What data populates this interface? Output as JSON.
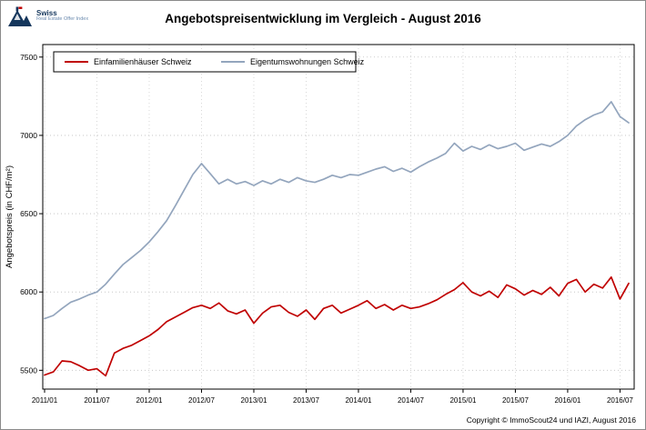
{
  "logo": {
    "brand": "Swiss",
    "tagline": "Real Estate Offer Index"
  },
  "title": "Angebotspreisentwicklung im Vergleich - August 2016",
  "footer": {
    "copyright": "Copyright © ImmoScout24 und IAZI, August 2016"
  },
  "chart_data": {
    "type": "line",
    "title": "Angebotspreisentwicklung im Vergleich - August 2016",
    "xlabel": "",
    "ylabel": "Angebotspreis (in CHF/m²)",
    "ylim": [
      5380,
      7580
    ],
    "yticks": [
      5500,
      6000,
      6500,
      7000,
      7500
    ],
    "xticks": [
      "2011/01",
      "2011/07",
      "2012/01",
      "2012/07",
      "2013/01",
      "2013/07",
      "2014/01",
      "2014/07",
      "2015/01",
      "2015/07",
      "2016/01",
      "2016/07"
    ],
    "grid": "dotted",
    "legend_position": "top-left-inside",
    "x": [
      "2011/01",
      "2011/02",
      "2011/03",
      "2011/04",
      "2011/05",
      "2011/06",
      "2011/07",
      "2011/08",
      "2011/09",
      "2011/10",
      "2011/11",
      "2011/12",
      "2012/01",
      "2012/02",
      "2012/03",
      "2012/04",
      "2012/05",
      "2012/06",
      "2012/07",
      "2012/08",
      "2012/09",
      "2012/10",
      "2012/11",
      "2012/12",
      "2013/01",
      "2013/02",
      "2013/03",
      "2013/04",
      "2013/05",
      "2013/06",
      "2013/07",
      "2013/08",
      "2013/09",
      "2013/10",
      "2013/11",
      "2013/12",
      "2014/01",
      "2014/02",
      "2014/03",
      "2014/04",
      "2014/05",
      "2014/06",
      "2014/07",
      "2014/08",
      "2014/09",
      "2014/10",
      "2014/11",
      "2014/12",
      "2015/01",
      "2015/02",
      "2015/03",
      "2015/04",
      "2015/05",
      "2015/06",
      "2015/07",
      "2015/08",
      "2015/09",
      "2015/10",
      "2015/11",
      "2015/12",
      "2016/01",
      "2016/02",
      "2016/03",
      "2016/04",
      "2016/05",
      "2016/06",
      "2016/07",
      "2016/08"
    ],
    "series": [
      {
        "name": "Einfamilienhäuser Schweiz",
        "color": "#c00000",
        "values": [
          5470,
          5490,
          5560,
          5555,
          5530,
          5500,
          5510,
          5465,
          5610,
          5640,
          5660,
          5690,
          5720,
          5760,
          5810,
          5840,
          5870,
          5900,
          5915,
          5895,
          5930,
          5880,
          5860,
          5885,
          5800,
          5865,
          5905,
          5915,
          5870,
          5845,
          5885,
          5825,
          5895,
          5915,
          5865,
          5890,
          5915,
          5945,
          5895,
          5920,
          5885,
          5915,
          5895,
          5905,
          5925,
          5950,
          5985,
          6015,
          6060,
          6000,
          5975,
          6005,
          5965,
          6045,
          6020,
          5980,
          6010,
          5985,
          6030,
          5975,
          6055,
          6080,
          6000,
          6050,
          6025,
          6095,
          5955,
          6055
        ]
      },
      {
        "name": "Eigentumswohnungen Schweiz",
        "color": "#93a5bd",
        "values": [
          5830,
          5850,
          5895,
          5935,
          5955,
          5980,
          6000,
          6050,
          6115,
          6175,
          6220,
          6265,
          6320,
          6385,
          6455,
          6550,
          6650,
          6750,
          6820,
          6755,
          6690,
          6720,
          6690,
          6705,
          6680,
          6710,
          6690,
          6720,
          6700,
          6730,
          6710,
          6700,
          6720,
          6745,
          6730,
          6750,
          6745,
          6765,
          6785,
          6800,
          6770,
          6790,
          6765,
          6800,
          6830,
          6855,
          6885,
          6950,
          6900,
          6930,
          6910,
          6940,
          6915,
          6930,
          6950,
          6905,
          6925,
          6945,
          6930,
          6960,
          7000,
          7060,
          7100,
          7130,
          7150,
          7215,
          7120,
          7080
        ]
      }
    ]
  }
}
